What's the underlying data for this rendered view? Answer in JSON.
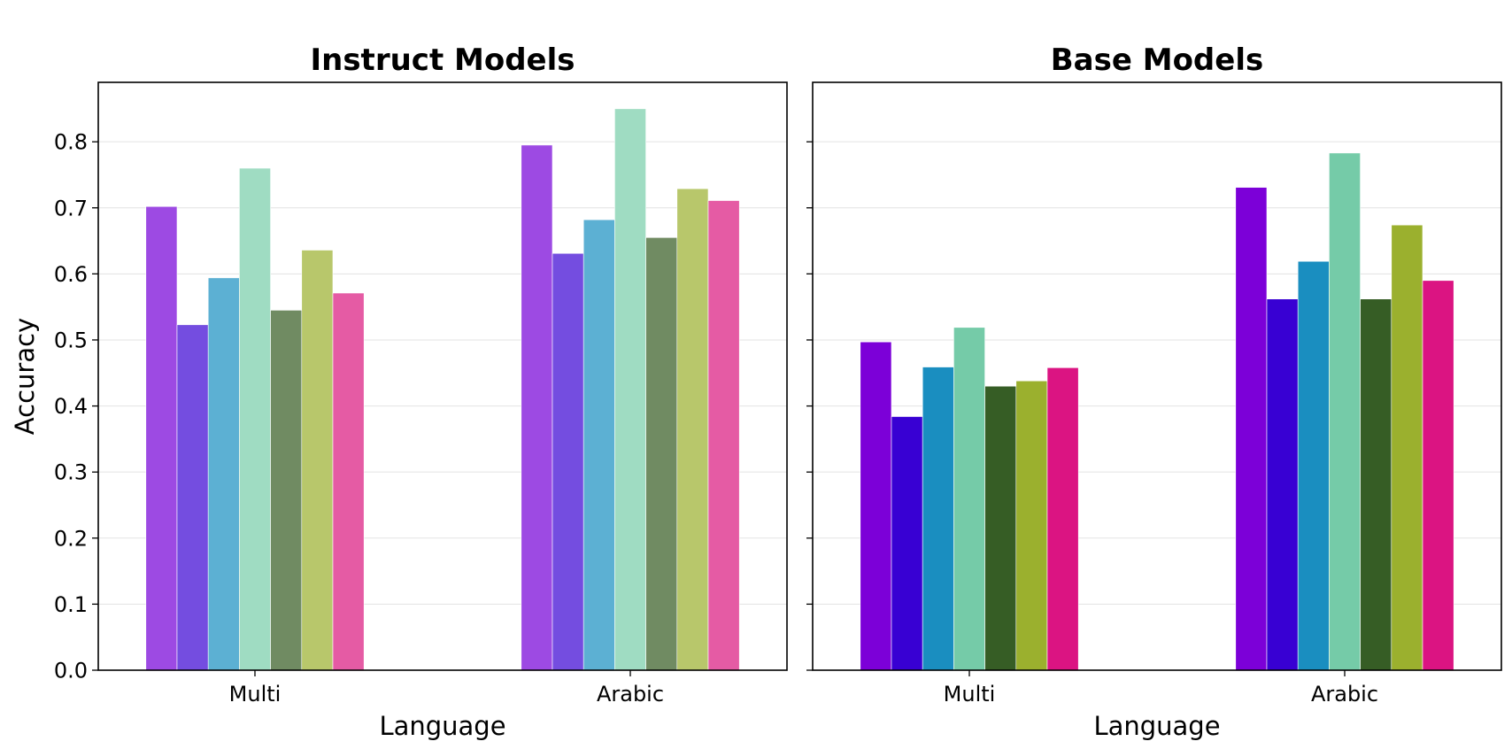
{
  "chart_data": [
    {
      "type": "bar",
      "title": "Instruct Models",
      "xlabel": "Language",
      "ylabel": "Accuracy",
      "categories": [
        "Multi",
        "Arabic"
      ],
      "ylim": [
        0.0,
        0.89
      ],
      "yticks": [
        "0.0",
        "0.1",
        "0.2",
        "0.3",
        "0.4",
        "0.5",
        "0.6",
        "0.7",
        "0.8"
      ],
      "grid": true,
      "series": [
        {
          "color": "#9d4ae3",
          "values": [
            0.702,
            0.795
          ]
        },
        {
          "color": "#744de0",
          "values": [
            0.523,
            0.631
          ]
        },
        {
          "color": "#5cb0d3",
          "values": [
            0.594,
            0.682
          ]
        },
        {
          "color": "#9fdcc2",
          "values": [
            0.76,
            0.85
          ]
        },
        {
          "color": "#708b62",
          "values": [
            0.545,
            0.655
          ]
        },
        {
          "color": "#b8c76b",
          "values": [
            0.636,
            0.729
          ]
        },
        {
          "color": "#e55ba4",
          "values": [
            0.571,
            0.711
          ]
        }
      ]
    },
    {
      "type": "bar",
      "title": "Base Models",
      "xlabel": "Language",
      "ylabel": "",
      "categories": [
        "Multi",
        "Arabic"
      ],
      "ylim": [
        0.0,
        0.89
      ],
      "yticks": [],
      "grid": true,
      "series": [
        {
          "color": "#7c00d8",
          "values": [
            0.497,
            0.731
          ]
        },
        {
          "color": "#3800d3",
          "values": [
            0.384,
            0.562
          ]
        },
        {
          "color": "#1a8ec0",
          "values": [
            0.459,
            0.619
          ]
        },
        {
          "color": "#75cba8",
          "values": [
            0.519,
            0.783
          ]
        },
        {
          "color": "#365d25",
          "values": [
            0.43,
            0.562
          ]
        },
        {
          "color": "#9bb02e",
          "values": [
            0.438,
            0.674
          ]
        },
        {
          "color": "#db1482",
          "values": [
            0.458,
            0.59
          ]
        }
      ]
    }
  ]
}
